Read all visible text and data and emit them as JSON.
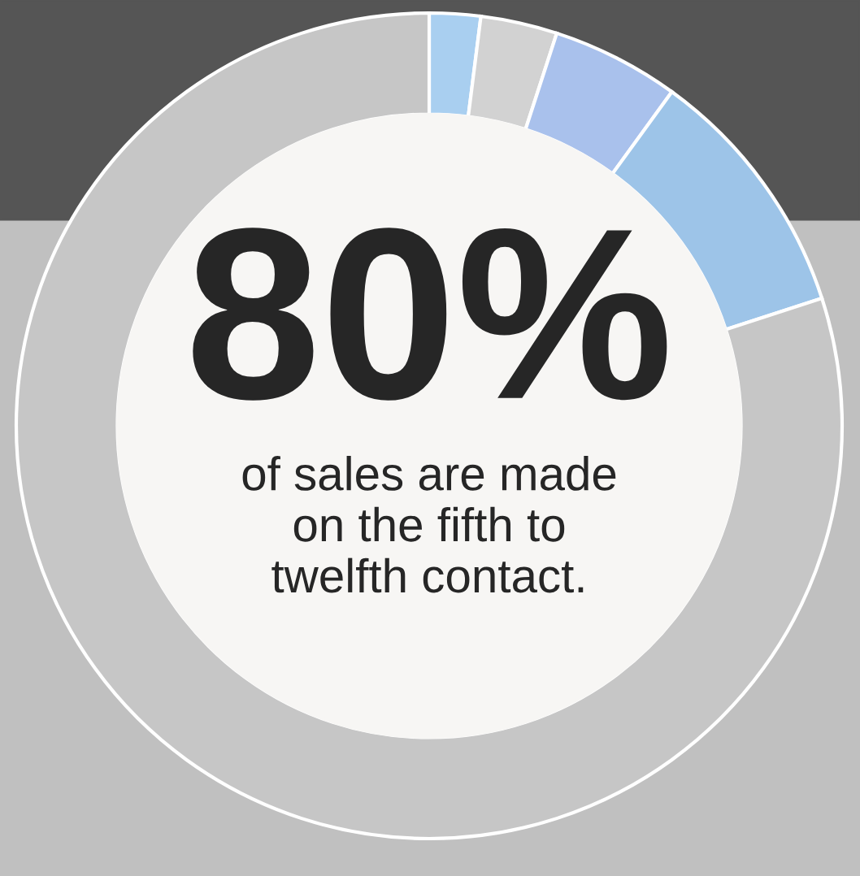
{
  "chart_data": {
    "type": "donut",
    "title": "80%",
    "categories": [
      null,
      null,
      null,
      null,
      null
    ],
    "values": [
      2,
      3,
      5,
      10,
      80
    ],
    "colors": [
      "#a9cff0",
      "#d2d2d2",
      "#a9c1ec",
      "#9dc4e8",
      "#c6c6c6"
    ],
    "annotations": [
      "of sales are made\non the fifth to\ntwelfth contact."
    ],
    "legend": false
  }
}
